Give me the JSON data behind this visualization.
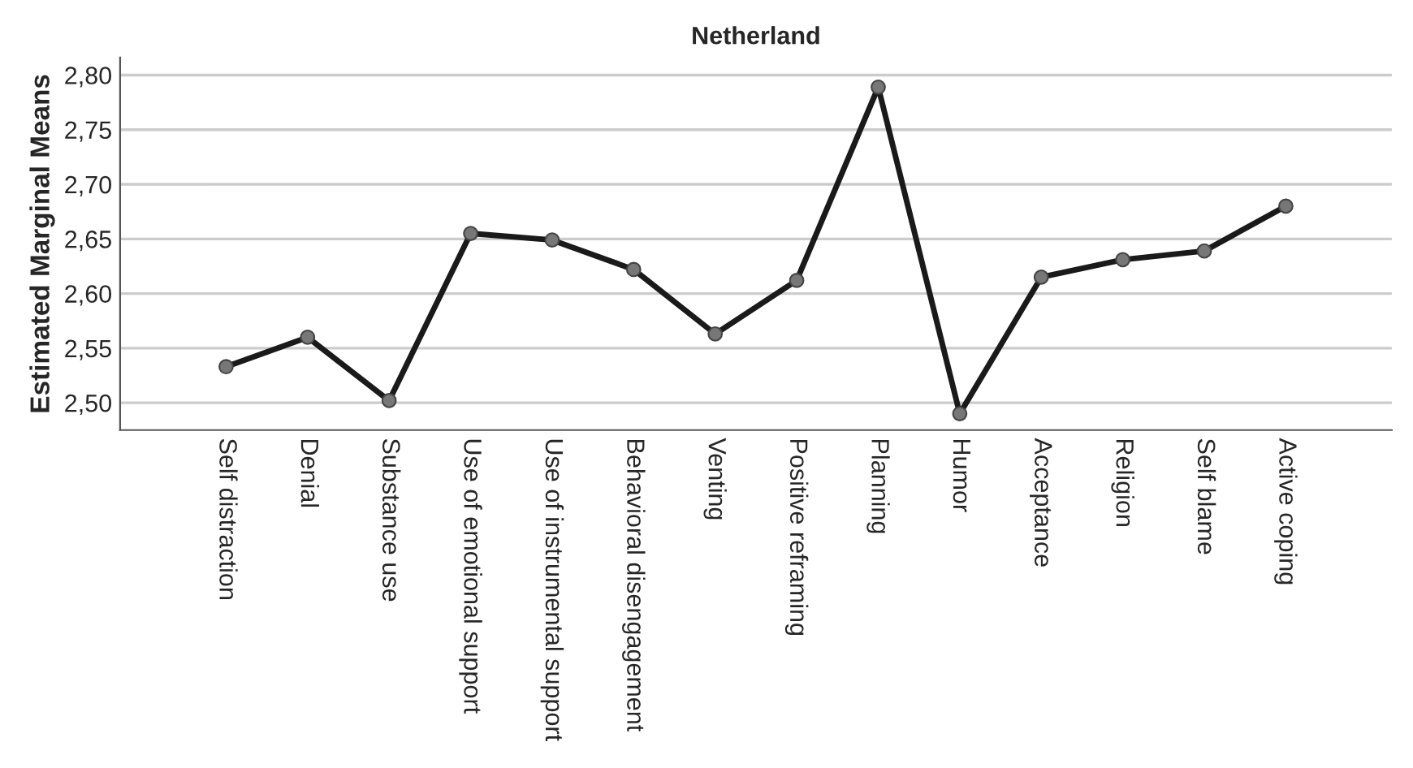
{
  "chart_data": {
    "type": "line",
    "title": "Netherland",
    "ylabel": "Estimated Marginal Means",
    "categories": [
      "Self distraction",
      "Denial",
      "Substance use",
      "Use of emotional support",
      "Use of instrumental support",
      "Behavioral disengagement",
      "Venting",
      "Positive reframing",
      "Planning",
      "Humor",
      "Acceptance",
      "Religion",
      "Self blame",
      "Active coping"
    ],
    "series": [
      {
        "color": "#1a1a1a",
        "values": [
          2.533,
          2.56,
          2.502,
          2.655,
          2.649,
          2.622,
          2.563,
          2.612,
          2.789,
          2.49,
          2.615,
          2.631,
          2.639,
          2.68
        ]
      }
    ],
    "ylim": [
      2.475,
      2.816
    ],
    "yticks": [
      {
        "value": 2.5,
        "label": "2,50"
      },
      {
        "value": 2.55,
        "label": "2,55"
      },
      {
        "value": 2.6,
        "label": "2,60"
      },
      {
        "value": 2.65,
        "label": "2,65"
      },
      {
        "value": 2.7,
        "label": "2,70"
      },
      {
        "value": 2.75,
        "label": "2,75"
      },
      {
        "value": 2.8,
        "label": "2,80"
      }
    ],
    "grid": "y",
    "marker": "circle",
    "line_style": "solid"
  }
}
